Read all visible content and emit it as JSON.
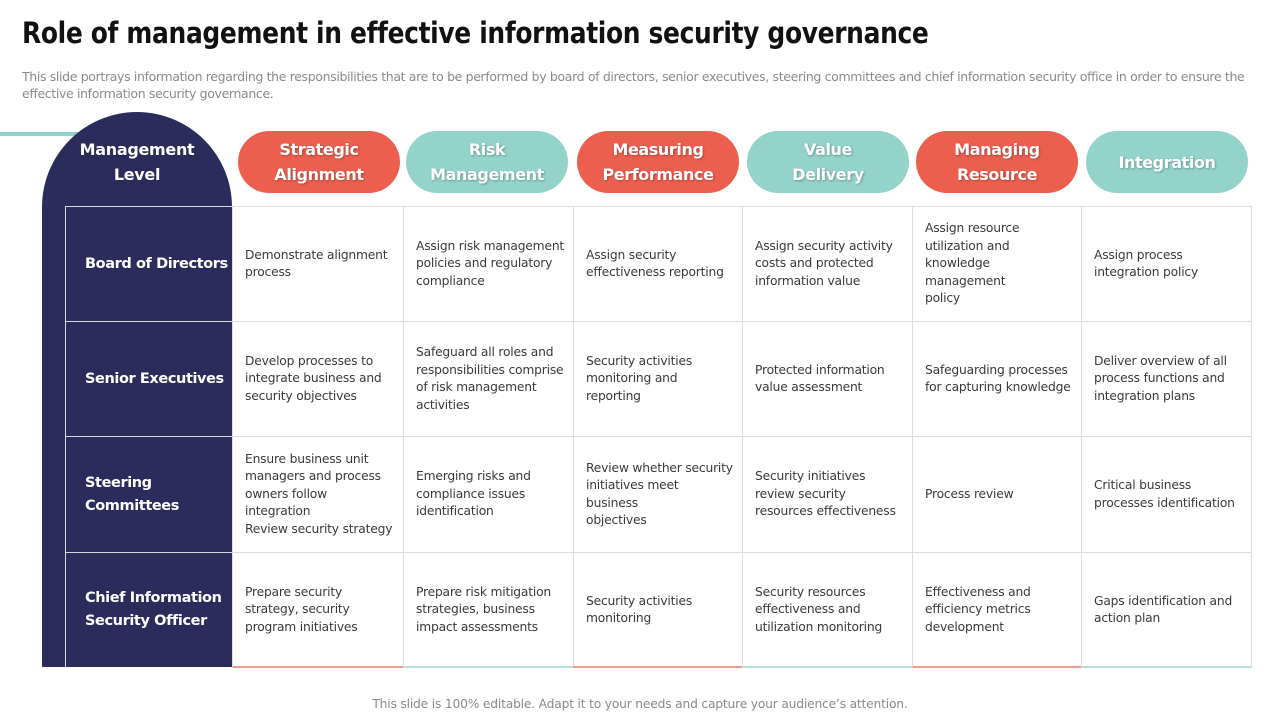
{
  "title": "Role of management in effective information security governance",
  "subtitle": "This slide portrays information regarding the responsibilities that are to be performed by board of directors, senior executives, steering committees and chief information security office in order to ensure the effective information security governance.",
  "management_header": [
    "Management",
    "Level"
  ],
  "columns": [
    {
      "lines": [
        "Strategic",
        "Alignment"
      ],
      "color": "#ec5f4f"
    },
    {
      "lines": [
        "Risk",
        "Management"
      ],
      "color": "#93d3ca"
    },
    {
      "lines": [
        "Measuring",
        "Performance"
      ],
      "color": "#ec5f4f"
    },
    {
      "lines": [
        "Value",
        "Delivery"
      ],
      "color": "#93d3ca"
    },
    {
      "lines": [
        "Managing",
        "Resource"
      ],
      "color": "#ec5f4f"
    },
    {
      "lines": [
        "Integration"
      ],
      "color": "#93d3ca"
    }
  ],
  "rows": [
    {
      "label": [
        "Board of Directors"
      ],
      "cells": [
        [
          "Demonstrate alignment",
          "process"
        ],
        [
          "Assign risk management",
          "policies and regulatory",
          "compliance"
        ],
        [
          "Assign security",
          "effectiveness reporting"
        ],
        [
          "Assign security activity",
          "costs and protected",
          "information value"
        ],
        [
          "Assign resource",
          "utilization and",
          "knowledge management",
          "policy"
        ],
        [
          "Assign process",
          "integration policy"
        ]
      ]
    },
    {
      "label": [
        "Senior Executives"
      ],
      "cells": [
        [
          "Develop processes to",
          "integrate business and",
          "security  objectives"
        ],
        [
          "Safeguard all roles and",
          "responsibilities comprise",
          "of risk management",
          "activities"
        ],
        [
          "Security activities",
          "monitoring and",
          "reporting"
        ],
        [
          "Protected information",
          "value assessment"
        ],
        [
          "Safeguarding processes",
          "for capturing knowledge"
        ],
        [
          "Deliver overview of all",
          "process functions and",
          "integration plans"
        ]
      ]
    },
    {
      "label": [
        "Steering Committees"
      ],
      "cells": [
        [
          "Ensure business unit",
          "managers and process",
          "owners follow",
          "integration",
          "Review security strategy"
        ],
        [
          "Emerging risks and",
          "compliance issues",
          "identification"
        ],
        [
          "Review whether security",
          "initiatives meet business",
          "objectives"
        ],
        [
          "Security initiatives",
          "review security",
          "resources effectiveness"
        ],
        [
          "Process review"
        ],
        [
          "Critical business",
          "processes identification"
        ]
      ]
    },
    {
      "label": [
        "Chief Information",
        "Security Officer"
      ],
      "cells": [
        [
          "Prepare security",
          "strategy, security",
          "program initiatives"
        ],
        [
          "Prepare risk mitigation",
          "strategies, business",
          "impact assessments"
        ],
        [
          "Security activities",
          "monitoring"
        ],
        [
          "Security resources",
          "effectiveness and",
          "utilization monitoring"
        ],
        [
          "Effectiveness and",
          "efficiency metrics",
          "development"
        ],
        [
          "Gaps identification and",
          "action plan"
        ]
      ]
    }
  ],
  "footer": "This slide is 100% editable. Adapt it to your needs and capture your audience’s attention."
}
